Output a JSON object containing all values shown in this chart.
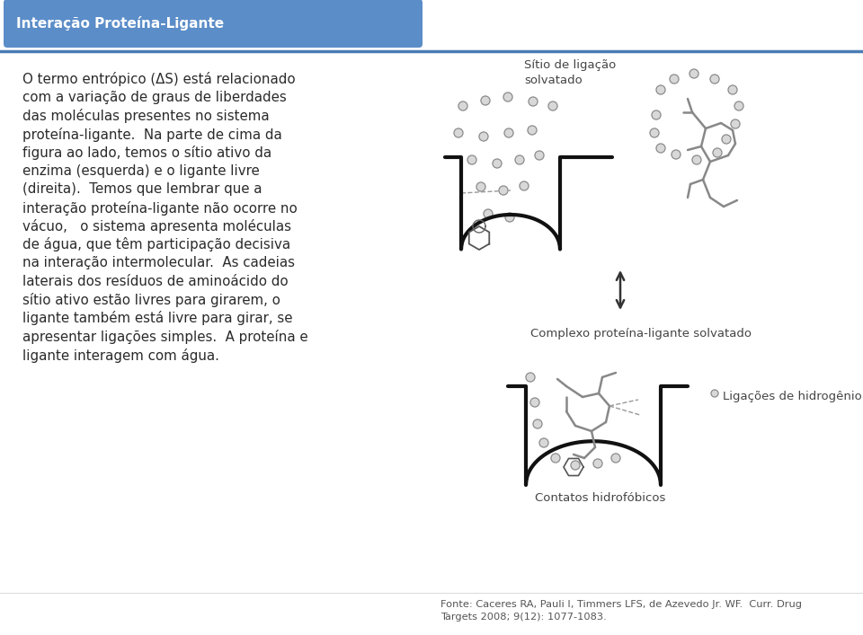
{
  "title": "Interação Proteína-Ligante",
  "title_color": "#ffffff",
  "title_bg_color": "#5b8dc8",
  "header_line_color": "#4a7cb5",
  "background_color": "#ffffff",
  "body_lines": [
    "O termo entrópico (ΔS) está relacionado",
    "com a variação de graus de liberdades",
    "das moléculas presentes no sistema",
    "proteína-ligante.  Na parte de cima da",
    "figura ao lado, temos o sítio ativo da",
    "enzima (esquerda) e o ligante livre",
    "(direita).  Temos que lembrar que a",
    "interação proteína-ligante não ocorre no",
    "vácuo,   o sistema apresenta moléculas",
    "de água, que têm participação decisiva",
    "na interação intermolecular.  As cadeias",
    "laterais dos resíduos de aminoácido do",
    "sítio ativo estão livres para girarem, o",
    "ligante também está livre para girar, se",
    "apresentar ligações simples.  A proteína e",
    "ligante interagem com água."
  ],
  "bold_segments": {
    "entrópico": true,
    "(ΔS)": true,
    "participação": true,
    "decisiva": true
  },
  "label_sitio": "Sítio de ligação\nsolvatado",
  "label_complexo": "Complexo proteína-ligante solvatado",
  "label_ligacoes": "Ligações de hidrogênio",
  "label_contatos": "Contatos hidrofóbicos",
  "fonte_text": "Fonte: Caceres RA, Pauli I, Timmers LFS, de Azevedo Jr. WF.  Curr. Drug\nTargets 2008; 9(12): 1077-1083.",
  "text_color": "#2a2a2a",
  "label_color": "#444444",
  "arrow_color": "#333333",
  "water_fill": "#d8d8d8",
  "water_edge": "#888888",
  "molecule_color": "#888888",
  "pocket_line_color": "#111111",
  "dashed_color": "#999999"
}
